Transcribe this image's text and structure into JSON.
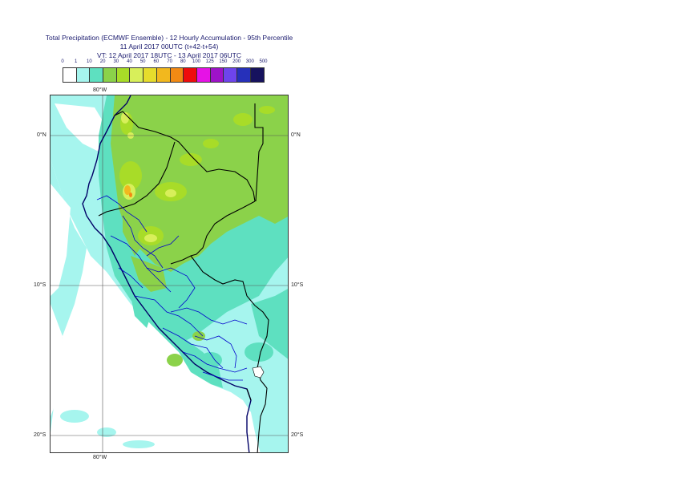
{
  "title": {
    "line1": "Total Precipitation (ECMWF Ensemble) - 12 Hourly Accumulation - 95th Percentile",
    "line2": "11 April 2017 00UTC (t+42-t+54)",
    "line3": "VT: 12 April 2017 18UTC - 13 April 2017 06UTC"
  },
  "legend": {
    "labels": [
      "0",
      "1",
      "10",
      "20",
      "30",
      "40",
      "50",
      "60",
      "70",
      "80",
      "100",
      "125",
      "150",
      "200",
      "300",
      "500"
    ],
    "colors": [
      "#ffffff",
      "#a6f5ee",
      "#5ee0c0",
      "#8bd24a",
      "#a8dc28",
      "#d8ef5a",
      "#e6dc2c",
      "#f2b81e",
      "#f28a14",
      "#ee0c0c",
      "#e612e6",
      "#9e12c8",
      "#6e44ec",
      "#2630ba",
      "#16125e"
    ]
  },
  "axes": {
    "lon_top": "80°W",
    "lon_bottom": "80°W",
    "lat_left": [
      "0°N",
      "10°S",
      "20°S"
    ],
    "lat_right": [
      "0°N",
      "10°S",
      "20°S"
    ]
  },
  "map": {
    "projection": "cylindrical",
    "lon_range": [
      -83.5,
      -67.5
    ],
    "lat_range": [
      -21.5,
      2.5
    ],
    "gridlines": true,
    "colors": {
      "ocean": "#ffffff",
      "border_national": "#000000",
      "border_regional": "#0000cc",
      "coastline": "#000066"
    }
  }
}
